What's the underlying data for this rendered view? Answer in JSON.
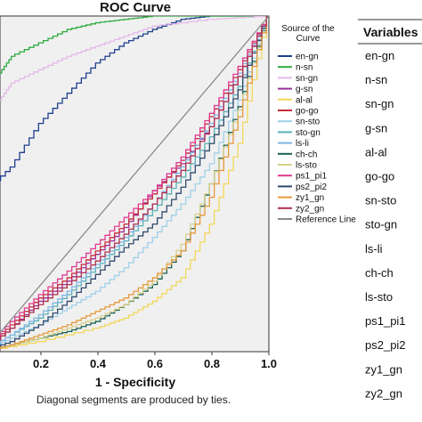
{
  "chart_data": {
    "type": "line",
    "title": "ROC Curve",
    "xlabel": "1 - Specificity",
    "ylabel": "",
    "xlim": [
      0.0,
      1.0
    ],
    "ylim": [
      0.0,
      1.0
    ],
    "x_ticks": [
      "0.2",
      "0.4",
      "0.6",
      "0.8",
      "1.0"
    ],
    "footnote": "Diagonal segments are produced by ties.",
    "legend_title": "Source of the Curve",
    "legend_position": "right",
    "series": [
      {
        "name": "en-gn",
        "color": "#1f3f8f",
        "points": [
          [
            0,
            0.47
          ],
          [
            0.1,
            0.55
          ],
          [
            0.2,
            0.68
          ],
          [
            0.3,
            0.77
          ],
          [
            0.4,
            0.86
          ],
          [
            0.5,
            0.92
          ],
          [
            0.6,
            0.96
          ],
          [
            0.7,
            0.99
          ],
          [
            0.8,
            1.0
          ],
          [
            1.0,
            1.0
          ]
        ]
      },
      {
        "name": "n-sn",
        "color": "#2eaa3e",
        "points": [
          [
            0,
            0.62
          ],
          [
            0.05,
            0.82
          ],
          [
            0.1,
            0.88
          ],
          [
            0.2,
            0.92
          ],
          [
            0.3,
            0.96
          ],
          [
            0.4,
            0.98
          ],
          [
            0.5,
            0.99
          ],
          [
            0.6,
            1.0
          ],
          [
            1.0,
            1.0
          ]
        ]
      },
      {
        "name": "sn-gn",
        "color": "#e4b9e8",
        "points": [
          [
            0,
            0.4
          ],
          [
            0.05,
            0.74
          ],
          [
            0.1,
            0.8
          ],
          [
            0.2,
            0.84
          ],
          [
            0.3,
            0.88
          ],
          [
            0.4,
            0.91
          ],
          [
            0.5,
            0.94
          ],
          [
            0.6,
            0.97
          ],
          [
            0.8,
            0.99
          ],
          [
            1.0,
            1.0
          ]
        ]
      },
      {
        "name": "g-sn",
        "color": "#9b2f9b",
        "points": [
          [
            0,
            0
          ],
          [
            0.1,
            0.07
          ],
          [
            0.2,
            0.15
          ],
          [
            0.3,
            0.21
          ],
          [
            0.4,
            0.29
          ],
          [
            0.5,
            0.37
          ],
          [
            0.6,
            0.48
          ],
          [
            0.7,
            0.56
          ],
          [
            0.8,
            0.67
          ],
          [
            0.9,
            0.82
          ],
          [
            1.0,
            1.0
          ]
        ]
      },
      {
        "name": "al-al",
        "color": "#f2d75a",
        "points": [
          [
            0,
            0
          ],
          [
            0.2,
            0.03
          ],
          [
            0.4,
            0.07
          ],
          [
            0.5,
            0.1
          ],
          [
            0.6,
            0.15
          ],
          [
            0.7,
            0.22
          ],
          [
            0.8,
            0.38
          ],
          [
            0.9,
            0.62
          ],
          [
            1.0,
            1.0
          ]
        ]
      },
      {
        "name": "go-go",
        "color": "#c72a3a",
        "points": [
          [
            0,
            0
          ],
          [
            0.1,
            0.08
          ],
          [
            0.2,
            0.16
          ],
          [
            0.3,
            0.22
          ],
          [
            0.4,
            0.3
          ],
          [
            0.5,
            0.38
          ],
          [
            0.6,
            0.47
          ],
          [
            0.7,
            0.57
          ],
          [
            0.8,
            0.7
          ],
          [
            0.9,
            0.84
          ],
          [
            1.0,
            1.0
          ]
        ]
      },
      {
        "name": "sn-sto",
        "color": "#9fd0e8",
        "points": [
          [
            0,
            0
          ],
          [
            0.1,
            0.04
          ],
          [
            0.2,
            0.08
          ],
          [
            0.3,
            0.13
          ],
          [
            0.4,
            0.18
          ],
          [
            0.5,
            0.25
          ],
          [
            0.6,
            0.34
          ],
          [
            0.7,
            0.44
          ],
          [
            0.8,
            0.56
          ],
          [
            0.9,
            0.75
          ],
          [
            1.0,
            1.0
          ]
        ]
      },
      {
        "name": "sto-gn",
        "color": "#5ab0b8",
        "points": [
          [
            0,
            0
          ],
          [
            0.1,
            0.05
          ],
          [
            0.2,
            0.1
          ],
          [
            0.3,
            0.17
          ],
          [
            0.4,
            0.25
          ],
          [
            0.5,
            0.33
          ],
          [
            0.6,
            0.42
          ],
          [
            0.7,
            0.52
          ],
          [
            0.8,
            0.64
          ],
          [
            0.9,
            0.79
          ],
          [
            1.0,
            1.0
          ]
        ]
      },
      {
        "name": "ls-li",
        "color": "#7fb5e6",
        "points": [
          [
            0,
            0
          ],
          [
            0.1,
            0.05
          ],
          [
            0.2,
            0.11
          ],
          [
            0.3,
            0.18
          ],
          [
            0.4,
            0.26
          ],
          [
            0.5,
            0.34
          ],
          [
            0.6,
            0.44
          ],
          [
            0.7,
            0.55
          ],
          [
            0.8,
            0.68
          ],
          [
            0.9,
            0.83
          ],
          [
            1.0,
            1.0
          ]
        ]
      },
      {
        "name": "ch-ch",
        "color": "#17604f",
        "points": [
          [
            0,
            0
          ],
          [
            0.1,
            0.02
          ],
          [
            0.2,
            0.04
          ],
          [
            0.3,
            0.06
          ],
          [
            0.4,
            0.09
          ],
          [
            0.5,
            0.14
          ],
          [
            0.6,
            0.2
          ],
          [
            0.7,
            0.3
          ],
          [
            0.8,
            0.5
          ],
          [
            0.9,
            0.73
          ],
          [
            1.0,
            1.0
          ]
        ]
      },
      {
        "name": "ls-sto",
        "color": "#d9d08a",
        "points": [
          [
            0,
            0
          ],
          [
            0.1,
            0.02
          ],
          [
            0.2,
            0.04
          ],
          [
            0.3,
            0.07
          ],
          [
            0.4,
            0.1
          ],
          [
            0.5,
            0.14
          ],
          [
            0.6,
            0.21
          ],
          [
            0.7,
            0.32
          ],
          [
            0.8,
            0.5
          ],
          [
            0.9,
            0.72
          ],
          [
            1.0,
            1.0
          ]
        ]
      },
      {
        "name": "ps1_pi1",
        "color": "#e03a8e",
        "points": [
          [
            0,
            0
          ],
          [
            0.1,
            0.09
          ],
          [
            0.2,
            0.17
          ],
          [
            0.3,
            0.24
          ],
          [
            0.4,
            0.32
          ],
          [
            0.5,
            0.4
          ],
          [
            0.6,
            0.48
          ],
          [
            0.7,
            0.58
          ],
          [
            0.8,
            0.71
          ],
          [
            0.9,
            0.85
          ],
          [
            1.0,
            1.0
          ]
        ]
      },
      {
        "name": "ps2_pi2",
        "color": "#2f4a6e",
        "points": [
          [
            0,
            0
          ],
          [
            0.1,
            0.03
          ],
          [
            0.2,
            0.08
          ],
          [
            0.3,
            0.15
          ],
          [
            0.4,
            0.23
          ],
          [
            0.5,
            0.31
          ],
          [
            0.6,
            0.38
          ],
          [
            0.7,
            0.49
          ],
          [
            0.8,
            0.62
          ],
          [
            0.9,
            0.78
          ],
          [
            1.0,
            1.0
          ]
        ]
      },
      {
        "name": "zy1_gn",
        "color": "#e69a3c",
        "points": [
          [
            0,
            0
          ],
          [
            0.1,
            0.02
          ],
          [
            0.2,
            0.05
          ],
          [
            0.3,
            0.08
          ],
          [
            0.4,
            0.12
          ],
          [
            0.5,
            0.16
          ],
          [
            0.6,
            0.22
          ],
          [
            0.7,
            0.3
          ],
          [
            0.8,
            0.46
          ],
          [
            0.9,
            0.7
          ],
          [
            1.0,
            1.0
          ]
        ]
      },
      {
        "name": "zy2_gn",
        "color": "#b0304f",
        "points": [
          [
            0,
            0
          ],
          [
            0.1,
            0.07
          ],
          [
            0.2,
            0.14
          ],
          [
            0.3,
            0.2
          ],
          [
            0.4,
            0.27
          ],
          [
            0.5,
            0.35
          ],
          [
            0.6,
            0.44
          ],
          [
            0.7,
            0.54
          ],
          [
            0.8,
            0.67
          ],
          [
            0.9,
            0.82
          ],
          [
            1.0,
            1.0
          ]
        ]
      },
      {
        "name": "Reference Line",
        "color": "#8a8a8a",
        "points": [
          [
            0,
            0
          ],
          [
            1,
            1
          ]
        ]
      }
    ]
  },
  "variables_panel": {
    "header": "Variables",
    "items": [
      "en-gn",
      "n-sn",
      "sn-gn",
      "g-sn",
      "al-al",
      "go-go",
      "sn-sto",
      "sto-gn",
      "ls-li",
      "ch-ch",
      "ls-sto",
      "ps1_pi1",
      "ps2_pi2",
      "zy1_gn",
      "zy2_gn"
    ]
  }
}
